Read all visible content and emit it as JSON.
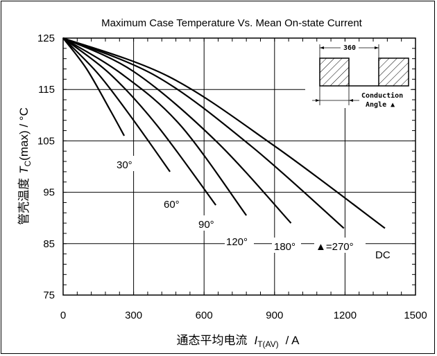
{
  "chart_data": {
    "type": "line",
    "title": "Maximum Case Temperature Vs. Mean On-state Current",
    "xlabel": {
      "prefix": "通态平均电流",
      "symbol": "I",
      "subscript": "T(AV)",
      "suffix": "/  A"
    },
    "ylabel": {
      "prefix": "管壳温度",
      "symbol": "T",
      "subscript": "C",
      "suffix": "(max) / °C"
    },
    "xlim": [
      0,
      1500
    ],
    "ylim": [
      75,
      125
    ],
    "xticks": [
      "0",
      "300",
      "600",
      "900",
      "1200",
      "1500"
    ],
    "yticks": [
      "75",
      "85",
      "95",
      "105",
      "115",
      "125"
    ],
    "grid": true,
    "series": [
      {
        "name": "30°",
        "x": [
          0,
          100,
          200,
          260
        ],
        "y": [
          125,
          119,
          111,
          106
        ]
      },
      {
        "name": "60°",
        "x": [
          0,
          150,
          300,
          455
        ],
        "y": [
          125,
          118,
          109,
          99
        ]
      },
      {
        "name": "90°",
        "x": [
          0,
          200,
          400,
          650
        ],
        "y": [
          125,
          118,
          108,
          92.5
        ]
      },
      {
        "name": "120°",
        "x": [
          0,
          250,
          500,
          780
        ],
        "y": [
          125,
          118,
          108,
          90.5
        ]
      },
      {
        "name": "180°",
        "x": [
          0,
          300,
          650,
          970
        ],
        "y": [
          125,
          118.5,
          105,
          89
        ]
      },
      {
        "name": "▲=270°",
        "x": [
          0,
          400,
          800,
          1195
        ],
        "y": [
          125,
          117.5,
          104,
          88
        ]
      },
      {
        "name": "DC",
        "x": [
          0,
          450,
          900,
          1370
        ],
        "y": [
          125,
          117.5,
          104,
          88
        ]
      }
    ],
    "inset": {
      "value": "360",
      "label_line1": "Conduction",
      "label_line2": "Angle ▲"
    }
  }
}
